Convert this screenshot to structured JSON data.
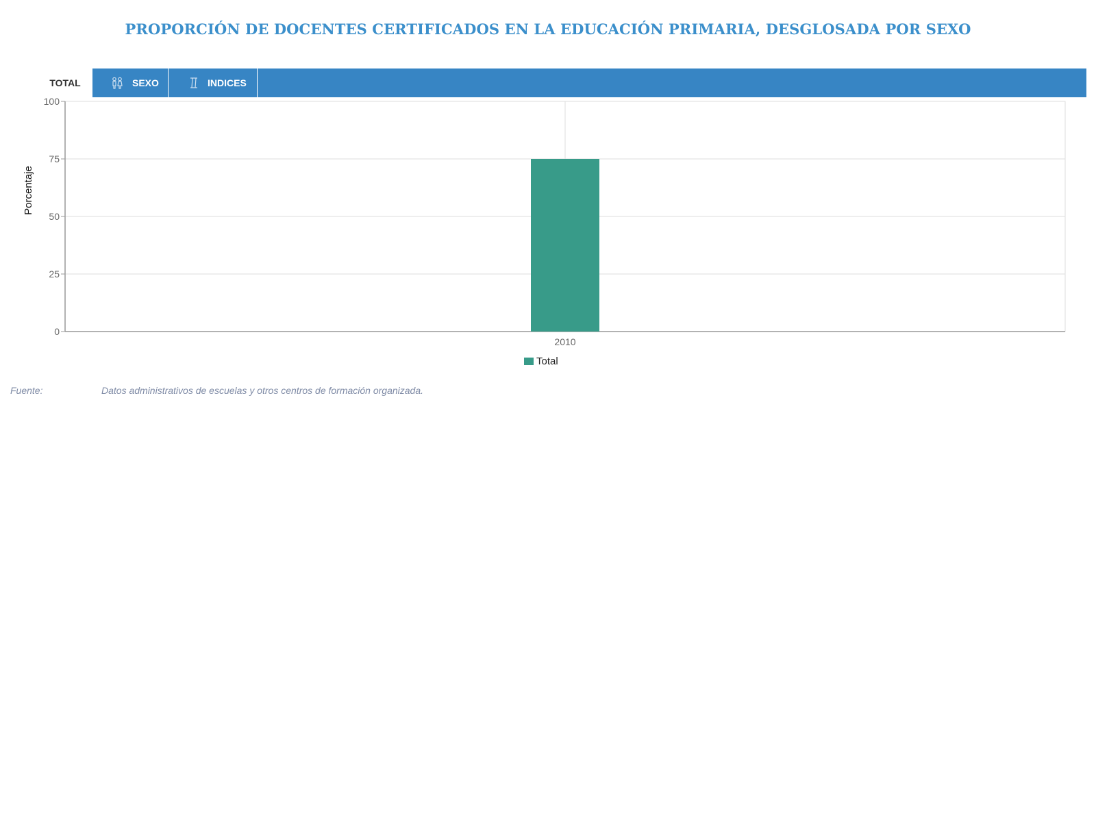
{
  "title": "PROPORCIÓN DE DOCENTES CERTIFICADOS EN LA EDUCACIÓN PRIMARIA, DESGLOSADA POR SEXO",
  "colors": {
    "title": "#3b8fcb",
    "tabbar": "#3785c4",
    "bar": "#389b89",
    "grid": "#dddddd",
    "axis": "#999999"
  },
  "tabs": [
    {
      "label": "TOTAL",
      "icon": "",
      "active": true
    },
    {
      "label": "SEXO",
      "icon": "gender-icon",
      "active": false
    },
    {
      "label": "INDICES",
      "icon": "index-icon",
      "active": false
    }
  ],
  "chart_data": {
    "type": "bar",
    "categories": [
      "2010"
    ],
    "series": [
      {
        "name": "Total",
        "values": [
          75
        ],
        "color": "#389b89"
      }
    ],
    "ylabel": "Porcentaje",
    "ylim": [
      0,
      100
    ],
    "yticks": [
      "0",
      "25",
      "50",
      "75",
      "100"
    ],
    "grid": true,
    "legend": "bottom-center"
  },
  "source": {
    "label": "Fuente:",
    "text": "Datos administrativos de escuelas y otros centros de formación organizada."
  }
}
